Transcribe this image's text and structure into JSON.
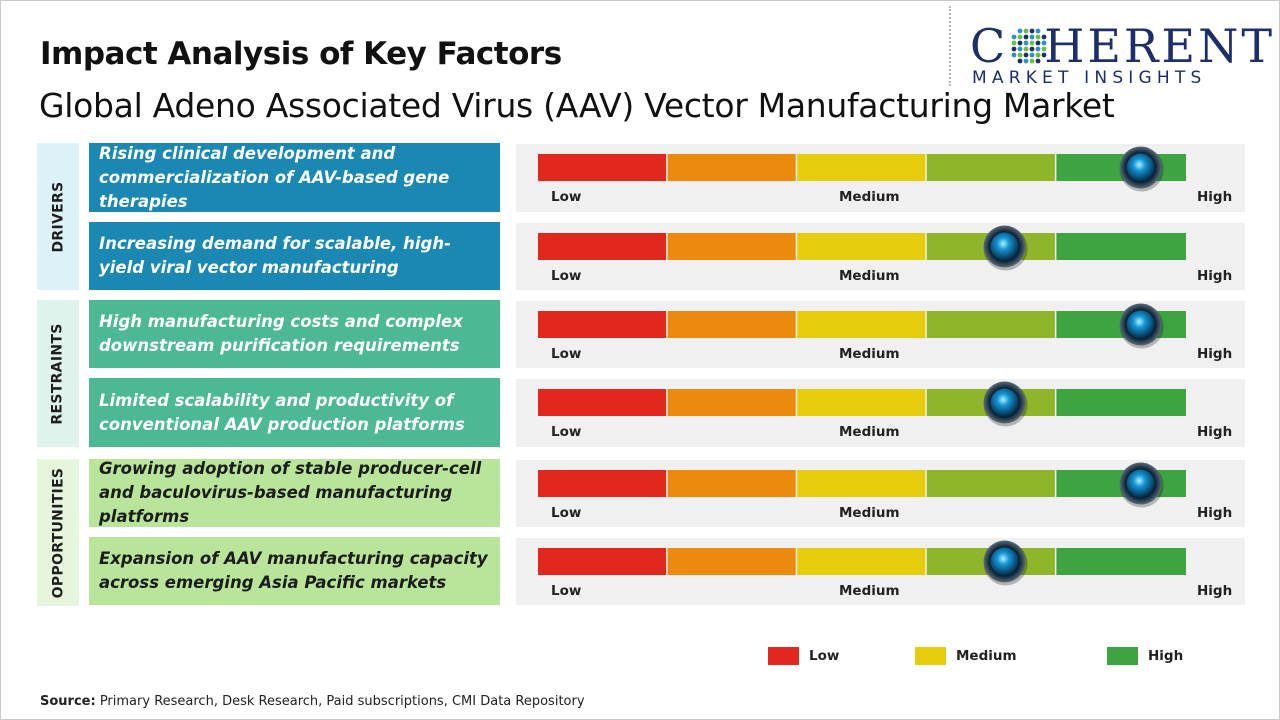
{
  "title": "Impact Analysis of Key Factors",
  "subtitle": "Global Adeno Associated Virus (AAV) Vector Manufacturing Market",
  "logo": {
    "first_letter": "C",
    "rest": "HERENT",
    "tagline": "MARKET INSIGHTS"
  },
  "colors": {
    "low": "#e0281e",
    "low_mid": "#ec8a10",
    "medium": "#e5cc0c",
    "mid_high": "#8fb52a",
    "high": "#3ea442",
    "drivers_cat_bg": "#ddf1f9",
    "drivers_box": "#1a88b3",
    "restraints_cat_bg": "#ddf3ec",
    "restraints_box": "#4db894",
    "opportunities_cat_bg": "#e6f6dd",
    "opportunities_box": "#b9e59a",
    "knob": "#1496d6"
  },
  "scale_labels": {
    "low": "Low",
    "medium": "Medium",
    "high": "High"
  },
  "categories": [
    {
      "name": "DRIVERS",
      "key": "drivers"
    },
    {
      "name": "RESTRAINTS",
      "key": "restraints"
    },
    {
      "name": "OPPORTUNITIES",
      "key": "opportunities"
    }
  ],
  "chart_data": {
    "type": "table",
    "scale": [
      "Low",
      "Medium",
      "High"
    ],
    "segments": 5,
    "rows": [
      {
        "category": "DRIVERS",
        "factor": "Rising clinical development and commercialization of AAV-based gene therapies",
        "impact": "High",
        "level_fraction": 0.93
      },
      {
        "category": "DRIVERS",
        "factor": "Increasing demand for scalable, high-yield viral vector manufacturing",
        "impact": "Medium-High",
        "level_fraction": 0.72
      },
      {
        "category": "RESTRAINTS",
        "factor": "High manufacturing costs and complex downstream purification requirements",
        "impact": "High",
        "level_fraction": 0.93
      },
      {
        "category": "RESTRAINTS",
        "factor": "Limited scalability and productivity of conventional AAV production platforms",
        "impact": "Medium-High",
        "level_fraction": 0.72
      },
      {
        "category": "OPPORTUNITIES",
        "factor": "Growing adoption of stable producer-cell and baculovirus-based manufacturing platforms",
        "impact": "High",
        "level_fraction": 0.93
      },
      {
        "category": "OPPORTUNITIES",
        "factor": "Expansion of AAV manufacturing capacity across emerging Asia Pacific markets",
        "impact": "Medium-High",
        "level_fraction": 0.72
      }
    ]
  },
  "legend": [
    {
      "label": "Low",
      "color": "#e0281e"
    },
    {
      "label": "Medium",
      "color": "#e5cc0c"
    },
    {
      "label": "High",
      "color": "#3ea442"
    }
  ],
  "source": {
    "label": "Source:",
    "text": " Primary Research, Desk Research, Paid subscriptions, CMI Data Repository"
  }
}
